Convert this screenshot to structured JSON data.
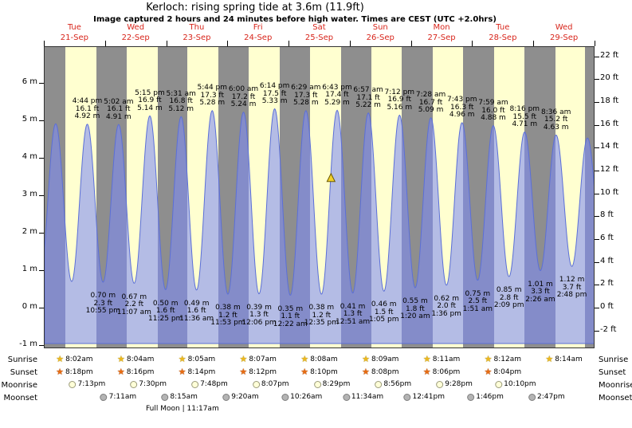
{
  "title": "Kerloch: rising  spring tide at 3.6m (11.9ft)",
  "subtitle": "Image captured 2 hours and 24 minutes before high water. Times are CEST (UTC +2.0hrs)",
  "colors": {
    "day_label": "#d8261c",
    "day_band": "#ffffd0",
    "night_band": "#8e8e8e",
    "tide_fill": "rgba(125,140,245,0.58)",
    "tide_stroke": "#5b6fd8",
    "marker_fill": "#f2d02c",
    "marker_stroke": "#6b5a00",
    "sunrise_icon": "#edb81f",
    "sunset_icon": "#e86c12",
    "moonrise_icon": "#ffffd8",
    "moonset_icon": "#b4b4b4"
  },
  "chart_data": {
    "type": "area",
    "title": "Kerloch: rising  spring tide at 3.6m (11.9ft)",
    "subtitle": "Image captured 2 hours and 24 minutes before high water. Times are CEST (UTC +2.0hrs)",
    "hours_span": 216,
    "x_axis": {
      "days": [
        {
          "name": "Tue",
          "date": "21-Sep"
        },
        {
          "name": "Wed",
          "date": "22-Sep"
        },
        {
          "name": "Thu",
          "date": "23-Sep"
        },
        {
          "name": "Fri",
          "date": "24-Sep"
        },
        {
          "name": "Sat",
          "date": "25-Sep"
        },
        {
          "name": "Sun",
          "date": "26-Sep"
        },
        {
          "name": "Mon",
          "date": "27-Sep"
        },
        {
          "name": "Tue",
          "date": "28-Sep"
        },
        {
          "name": "Wed",
          "date": "29-Sep"
        }
      ]
    },
    "y_axis_left": {
      "unit": "m",
      "ticks": [
        6,
        5,
        4,
        3,
        2,
        1,
        0,
        -1
      ]
    },
    "y_axis_right": {
      "unit": "ft",
      "ticks": [
        22,
        20,
        18,
        16,
        14,
        12,
        10,
        8,
        6,
        4,
        2,
        0,
        -2
      ]
    },
    "high_tides": [
      {
        "time": "4:44 pm",
        "height_ft": 16.1,
        "height_m": 4.92,
        "t_hours": 16.73
      },
      {
        "time": "5:02 am",
        "height_ft": 16.1,
        "height_m": 4.91,
        "t_hours": 29.03
      },
      {
        "time": "5:15 pm",
        "height_ft": 16.9,
        "height_m": 5.14,
        "t_hours": 41.25
      },
      {
        "time": "5:31 am",
        "height_ft": 16.8,
        "height_m": 5.12,
        "t_hours": 53.52
      },
      {
        "time": "5:44 pm",
        "height_ft": 17.3,
        "height_m": 5.28,
        "t_hours": 65.73
      },
      {
        "time": "6:00 am",
        "height_ft": 17.2,
        "height_m": 5.24,
        "t_hours": 78.0
      },
      {
        "time": "6:14 pm",
        "height_ft": 17.5,
        "height_m": 5.33,
        "t_hours": 90.23
      },
      {
        "time": "6:29 am",
        "height_ft": 17.3,
        "height_m": 5.28,
        "t_hours": 102.48
      },
      {
        "time": "6:43 pm",
        "height_ft": 17.4,
        "height_m": 5.29,
        "t_hours": 114.72
      },
      {
        "time": "6:57 am",
        "height_ft": 17.1,
        "height_m": 5.22,
        "t_hours": 126.95
      },
      {
        "time": "7:12 pm",
        "height_ft": 16.9,
        "height_m": 5.16,
        "t_hours": 139.2
      },
      {
        "time": "7:28 am",
        "height_ft": 16.7,
        "height_m": 5.09,
        "t_hours": 151.47
      },
      {
        "time": "7:43 pm",
        "height_ft": 16.3,
        "height_m": 4.96,
        "t_hours": 163.72
      },
      {
        "time": "7:59 am",
        "height_ft": 16.0,
        "height_m": 4.88,
        "t_hours": 175.98
      },
      {
        "time": "8:16 pm",
        "height_ft": 15.5,
        "height_m": 4.71,
        "t_hours": 188.27
      },
      {
        "time": "8:36 am",
        "height_ft": 15.2,
        "height_m": 4.63,
        "t_hours": 200.6
      }
    ],
    "low_tides": [
      {
        "time": "10:55 pm",
        "height_ft": 2.3,
        "height_m": 0.7,
        "t_hours": 22.92
      },
      {
        "time": "11:07 am",
        "height_ft": 2.2,
        "height_m": 0.67,
        "t_hours": 35.12
      },
      {
        "time": "11:25 pm",
        "height_ft": 1.6,
        "height_m": 0.5,
        "t_hours": 47.42
      },
      {
        "time": "11:36 am",
        "height_ft": 1.6,
        "height_m": 0.49,
        "t_hours": 59.6
      },
      {
        "time": "11:53 pm",
        "height_ft": 1.2,
        "height_m": 0.38,
        "t_hours": 71.88
      },
      {
        "time": "12:06 pm",
        "height_ft": 1.3,
        "height_m": 0.39,
        "t_hours": 84.1
      },
      {
        "time": "12:22 am",
        "height_ft": 1.1,
        "height_m": 0.35,
        "t_hours": 96.37
      },
      {
        "time": "12:35 pm",
        "height_ft": 1.2,
        "height_m": 0.38,
        "t_hours": 108.58
      },
      {
        "time": "12:51 am",
        "height_ft": 1.3,
        "height_m": 0.41,
        "t_hours": 120.85
      },
      {
        "time": "1:05 pm",
        "height_ft": 1.5,
        "height_m": 0.46,
        "t_hours": 133.08
      },
      {
        "time": "1:20 am",
        "height_ft": 1.8,
        "height_m": 0.55,
        "t_hours": 145.33
      },
      {
        "time": "1:36 pm",
        "height_ft": 2.0,
        "height_m": 0.62,
        "t_hours": 157.6
      },
      {
        "time": "1:51 am",
        "height_ft": 2.5,
        "height_m": 0.75,
        "t_hours": 169.85
      },
      {
        "time": "2:09 pm",
        "height_ft": 2.8,
        "height_m": 0.85,
        "t_hours": 182.15
      },
      {
        "time": "2:26 am",
        "height_ft": 3.3,
        "height_m": 1.01,
        "t_hours": 194.43
      },
      {
        "time": "2:48 pm",
        "height_ft": 3.7,
        "height_m": 1.12,
        "t_hours": 206.8
      }
    ],
    "edge_extremes": [
      {
        "t_hours": -1.87,
        "height_m": 0.75
      },
      {
        "t_hours": 4.33,
        "height_m": 4.93
      },
      {
        "t_hours": 10.6,
        "height_m": 0.72
      },
      {
        "t_hours": 212.93,
        "height_m": 4.55
      },
      {
        "t_hours": 219.1,
        "height_m": 1.15
      }
    ],
    "current_level_marker": {
      "height_m": 3.6,
      "t_hours": 112.32
    }
  },
  "astro": {
    "rows": [
      {
        "id": "sunrise",
        "label": "Sunrise",
        "icon": "sunrise-star-icon",
        "times": [
          "8:02am",
          "8:04am",
          "8:05am",
          "8:07am",
          "8:08am",
          "8:09am",
          "8:11am",
          "8:12am",
          "8:14am"
        ]
      },
      {
        "id": "sunset",
        "label": "Sunset",
        "icon": "sunset-star-icon",
        "times": [
          "8:18pm",
          "8:16pm",
          "8:14pm",
          "8:12pm",
          "8:10pm",
          "8:08pm",
          "8:06pm",
          "8:04pm"
        ]
      },
      {
        "id": "moonrise",
        "label": "Moonrise",
        "icon": "moonrise-circle-icon",
        "times": [
          "7:13pm",
          "7:30pm",
          "7:48pm",
          "8:07pm",
          "8:29pm",
          "8:56pm",
          "9:28pm",
          "10:10pm"
        ]
      },
      {
        "id": "moonset",
        "label": "Moonset",
        "icon": "moonset-circle-icon",
        "times": [
          "7:11am",
          "8:15am",
          "9:20am",
          "10:26am",
          "11:34am",
          "12:41pm",
          "1:46pm",
          "2:47pm"
        ]
      }
    ],
    "full_moon": "Full Moon | 11:17am"
  }
}
